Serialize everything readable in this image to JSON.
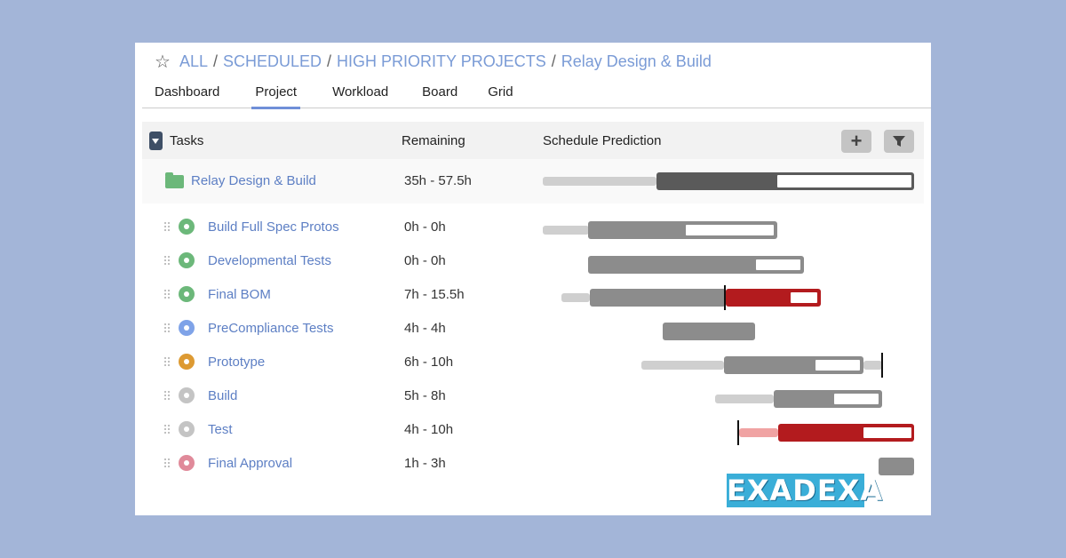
{
  "breadcrumb": {
    "items": [
      "ALL",
      "SCHEDULED",
      "HIGH PRIORITY PROJECTS",
      "Relay Design & Build"
    ],
    "separator": "/"
  },
  "tabs": [
    {
      "label": "Dashboard"
    },
    {
      "label": "Project",
      "active": true
    },
    {
      "label": "Workload"
    },
    {
      "label": "Board"
    },
    {
      "label": "Grid"
    }
  ],
  "table": {
    "headers": {
      "tasks": "Tasks",
      "remaining": "Remaining",
      "prediction": "Schedule Prediction"
    },
    "add_icon": "plus-icon",
    "filter_icon": "filter-icon",
    "summary": {
      "name": "Relay Design & Build",
      "remaining": "35h - 57.5h",
      "icon": "folder-icon"
    },
    "rows": [
      {
        "name": "Build Full Spec Protos",
        "remaining": "0h - 0h",
        "status_color": "#6cb87a"
      },
      {
        "name": "Developmental Tests",
        "remaining": "0h - 0h",
        "status_color": "#6cb87a"
      },
      {
        "name": "Final BOM",
        "remaining": "7h - 15.5h",
        "status_color": "#6cb87a"
      },
      {
        "name": "PreCompliance Tests",
        "remaining": "4h - 4h",
        "status_color": "#7fa3e8"
      },
      {
        "name": "Prototype",
        "remaining": "6h - 10h",
        "status_color": "#dd9a32"
      },
      {
        "name": "Build",
        "remaining": "5h - 8h",
        "status_color": "#c4c4c4"
      },
      {
        "name": "Test",
        "remaining": "4h - 10h",
        "status_color": "#c4c4c4"
      },
      {
        "name": "Final Approval",
        "remaining": "1h - 3h",
        "status_color": "#e08a9a"
      }
    ]
  },
  "colors": {
    "link": "#5d7fc4",
    "bar_gray": "#8c8c8c",
    "bar_dark": "#5a5a5a",
    "bar_light": "#cfcfcf",
    "bar_red": "#b31b1e",
    "bar_pink": "#f0a3a3"
  },
  "logo": {
    "text": "EXADEXA"
  }
}
